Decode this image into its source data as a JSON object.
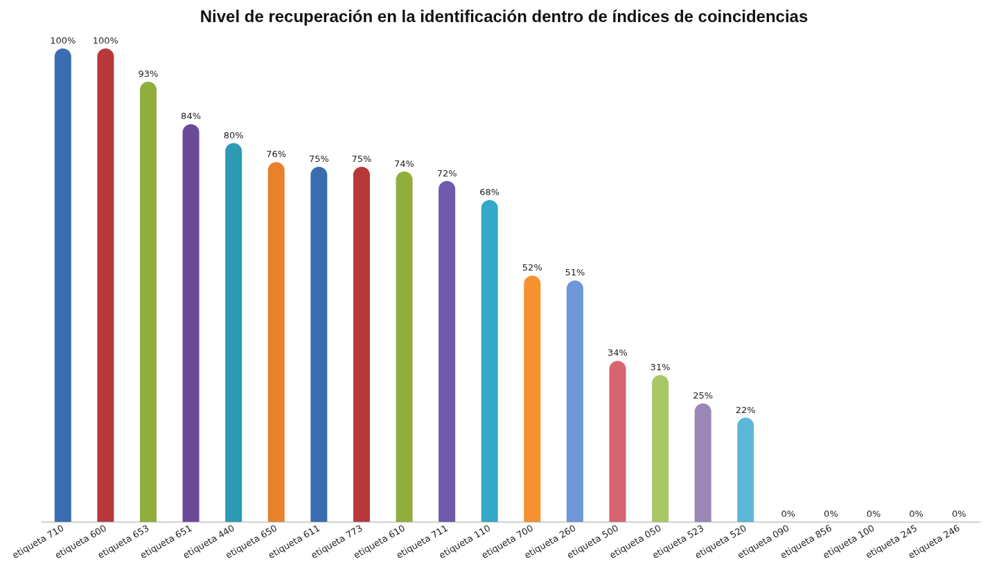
{
  "chart_data": {
    "type": "bar",
    "title": "Nivel de recuperación en la identificación dentro de índices de coincidencias",
    "categories": [
      "etiqueta 710",
      "etiqueta 600",
      "etiqueta 653",
      "etiqueta 651",
      "etiqueta 440",
      "etiqueta 650",
      "etiqueta 611",
      "etiqueta 773",
      "etiqueta 610",
      "etiqueta 711",
      "etiqueta 110",
      "etiqueta 700",
      "etiqueta 260",
      "etiqueta 500",
      "etiqueta 050",
      "etiqueta 523",
      "etiqueta 520",
      "etiqueta 090",
      "etiqueta 856",
      "etiqueta 100",
      "etiqueta 245",
      "etiqueta 246"
    ],
    "values": [
      100,
      100,
      93,
      84,
      80,
      76,
      75,
      75,
      74,
      72,
      68,
      52,
      51,
      34,
      31,
      25,
      22,
      0,
      0,
      0,
      0,
      0
    ],
    "value_labels": [
      "100%",
      "100%",
      "93%",
      "84%",
      "80%",
      "76%",
      "75%",
      "75%",
      "74%",
      "72%",
      "68%",
      "52%",
      "51%",
      "34%",
      "31%",
      "25%",
      "22%",
      "0%",
      "0%",
      "0%",
      "0%",
      "0%"
    ],
    "colors": [
      "#3a6db0",
      "#b8393a",
      "#8fae3c",
      "#6a4a94",
      "#2e9bb4",
      "#e8822a",
      "#3a6db0",
      "#b8393a",
      "#8fae3c",
      "#6e5aab",
      "#33a8c9",
      "#f5922f",
      "#6d97d6",
      "#d86470",
      "#a8c868",
      "#9a87b8",
      "#5cb8d6",
      "#888888",
      "#888888",
      "#888888",
      "#888888",
      "#888888"
    ]
  }
}
